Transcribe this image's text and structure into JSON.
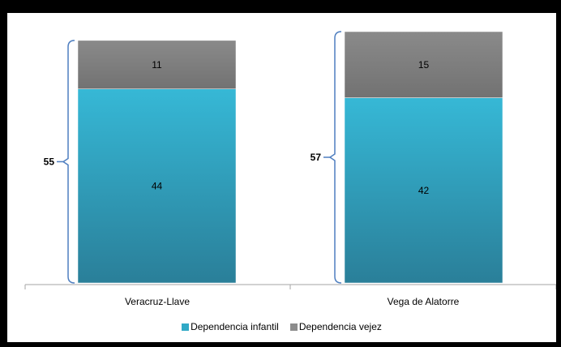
{
  "chart_data": {
    "type": "bar",
    "stacked": true,
    "categories": [
      "Veracruz-Llave",
      "Vega de Alatorre"
    ],
    "series": [
      {
        "name": "Dependencia infantil",
        "values": [
          44,
          42
        ],
        "color": "#31a9c6"
      },
      {
        "name": "Dependencia vejez",
        "values": [
          11,
          15
        ],
        "color": "#8c8c8c"
      }
    ],
    "totals": [
      "55",
      "57"
    ],
    "title": "",
    "xlabel": "",
    "ylabel": "",
    "ylim": [
      0,
      57
    ],
    "grid": false,
    "legend_position": "bottom"
  }
}
